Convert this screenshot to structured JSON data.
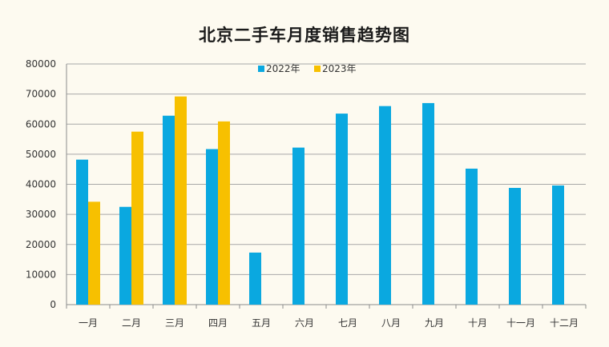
{
  "chart_data": {
    "type": "bar",
    "title": "北京二手车月度销售趋势图",
    "categories": [
      "一月",
      "二月",
      "三月",
      "四月",
      "五月",
      "六月",
      "七月",
      "八月",
      "九月",
      "十月",
      "十一月",
      "十二月"
    ],
    "series": [
      {
        "name": "2022年",
        "color": "#0aa8e0",
        "values": [
          48200,
          32500,
          62800,
          51700,
          17300,
          52200,
          63500,
          66000,
          67000,
          45200,
          38800,
          39600
        ]
      },
      {
        "name": "2023年",
        "color": "#f7c000",
        "values": [
          34200,
          57500,
          69200,
          60900,
          null,
          null,
          null,
          null,
          null,
          null,
          null,
          null
        ]
      }
    ],
    "ylim": [
      0,
      80000
    ],
    "yticks": [
      "0",
      "10000",
      "20000",
      "30000",
      "40000",
      "50000",
      "60000",
      "70000",
      "80000"
    ],
    "grid": true,
    "legend_position": "top-center"
  }
}
